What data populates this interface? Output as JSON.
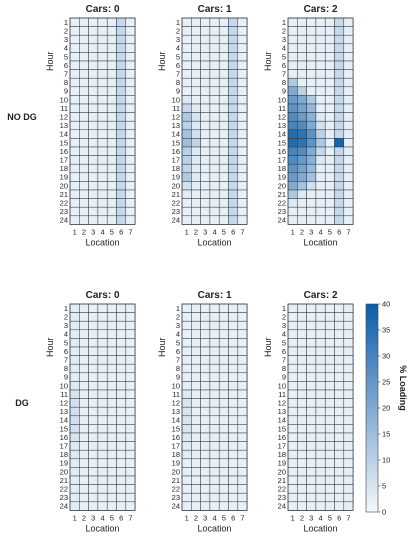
{
  "row_labels": [
    "NO DG",
    "DG"
  ],
  "colorbar": {
    "label": "% Loading",
    "ticks": [
      0,
      5,
      10,
      15,
      20,
      25,
      30,
      35,
      40
    ],
    "range": [
      0,
      40
    ],
    "color_low": "#f4f8fb",
    "color_high": "#0b5da8"
  },
  "chart_data": [
    {
      "type": "heatmap",
      "title": "Cars: 0",
      "xlabel": "Location",
      "ylabel": "Hour",
      "x": [
        1,
        2,
        3,
        4,
        5,
        6,
        7
      ],
      "y": [
        1,
        2,
        3,
        4,
        5,
        6,
        7,
        8,
        9,
        10,
        11,
        12,
        13,
        14,
        15,
        16,
        17,
        18,
        19,
        20,
        21,
        22,
        23,
        24
      ],
      "values": [
        [
          2,
          2,
          2,
          2,
          2,
          8,
          2
        ],
        [
          2,
          2,
          2,
          2,
          2,
          8,
          2
        ],
        [
          2,
          2,
          2,
          2,
          2,
          8,
          2
        ],
        [
          2,
          2,
          2,
          2,
          2,
          8,
          2
        ],
        [
          2,
          2,
          2,
          2,
          2,
          8,
          2
        ],
        [
          2,
          2,
          2,
          2,
          2,
          8,
          2
        ],
        [
          2,
          2,
          2,
          2,
          2,
          8,
          2
        ],
        [
          2,
          2,
          2,
          2,
          2,
          8,
          2
        ],
        [
          2,
          2,
          2,
          2,
          2,
          8,
          2
        ],
        [
          2,
          2,
          2,
          2,
          2,
          8,
          2
        ],
        [
          2,
          2,
          2,
          2,
          2,
          8,
          2
        ],
        [
          2,
          2,
          2,
          2,
          2,
          8,
          2
        ],
        [
          2,
          2,
          2,
          2,
          2,
          8,
          2
        ],
        [
          2,
          2,
          2,
          2,
          2,
          8,
          2
        ],
        [
          2,
          2,
          2,
          2,
          2,
          8,
          2
        ],
        [
          2,
          2,
          2,
          2,
          2,
          8,
          2
        ],
        [
          2,
          2,
          2,
          2,
          2,
          8,
          2
        ],
        [
          2,
          2,
          2,
          2,
          2,
          8,
          2
        ],
        [
          2,
          2,
          2,
          2,
          2,
          8,
          2
        ],
        [
          2,
          2,
          2,
          2,
          2,
          8,
          2
        ],
        [
          2,
          2,
          2,
          2,
          2,
          8,
          2
        ],
        [
          2,
          2,
          2,
          2,
          2,
          8,
          2
        ],
        [
          2,
          2,
          2,
          2,
          2,
          8,
          2
        ],
        [
          2,
          2,
          2,
          2,
          2,
          8,
          2
        ]
      ]
    },
    {
      "type": "heatmap",
      "title": "Cars: 1",
      "xlabel": "Location",
      "ylabel": "Hour",
      "x": [
        1,
        2,
        3,
        4,
        5,
        6,
        7
      ],
      "y": [
        1,
        2,
        3,
        4,
        5,
        6,
        7,
        8,
        9,
        10,
        11,
        12,
        13,
        14,
        15,
        16,
        17,
        18,
        19,
        20,
        21,
        22,
        23,
        24
      ],
      "values": [
        [
          2,
          2,
          2,
          2,
          2,
          8,
          2
        ],
        [
          2,
          2,
          2,
          2,
          2,
          8,
          2
        ],
        [
          2,
          2,
          2,
          2,
          2,
          8,
          2
        ],
        [
          2,
          2,
          2,
          2,
          2,
          8,
          2
        ],
        [
          2,
          2,
          2,
          2,
          2,
          8,
          2
        ],
        [
          2,
          2,
          2,
          2,
          2,
          8,
          2
        ],
        [
          2,
          2,
          2,
          2,
          2,
          8,
          2
        ],
        [
          2,
          2,
          2,
          2,
          2,
          8,
          2
        ],
        [
          2,
          2,
          2,
          2,
          2,
          8,
          2
        ],
        [
          4,
          2,
          2,
          2,
          2,
          8,
          2
        ],
        [
          8,
          3,
          2,
          2,
          2,
          8,
          2
        ],
        [
          12,
          5,
          2,
          2,
          2,
          8,
          2
        ],
        [
          10,
          4,
          2,
          2,
          2,
          8,
          2
        ],
        [
          14,
          6,
          2,
          2,
          2,
          8,
          2
        ],
        [
          15,
          9,
          2,
          2,
          2,
          8,
          2
        ],
        [
          10,
          4,
          2,
          2,
          2,
          8,
          2
        ],
        [
          10,
          4,
          2,
          2,
          2,
          8,
          2
        ],
        [
          9,
          3,
          2,
          2,
          2,
          8,
          2
        ],
        [
          12,
          4,
          2,
          2,
          2,
          8,
          2
        ],
        [
          6,
          3,
          2,
          2,
          2,
          8,
          2
        ],
        [
          3,
          2,
          2,
          2,
          2,
          8,
          2
        ],
        [
          2,
          2,
          2,
          2,
          2,
          8,
          2
        ],
        [
          2,
          2,
          2,
          2,
          2,
          8,
          2
        ],
        [
          2,
          2,
          2,
          2,
          2,
          8,
          2
        ]
      ]
    },
    {
      "type": "heatmap",
      "title": "Cars: 2",
      "xlabel": "Location",
      "ylabel": "Hour",
      "x": [
        1,
        2,
        3,
        4,
        5,
        6,
        7
      ],
      "y": [
        1,
        2,
        3,
        4,
        5,
        6,
        7,
        8,
        9,
        10,
        11,
        12,
        13,
        14,
        15,
        16,
        17,
        18,
        19,
        20,
        21,
        22,
        23,
        24
      ],
      "values": [
        [
          2,
          2,
          2,
          2,
          2,
          8,
          2
        ],
        [
          2,
          2,
          2,
          2,
          2,
          8,
          2
        ],
        [
          2,
          2,
          2,
          2,
          2,
          8,
          2
        ],
        [
          2,
          2,
          2,
          2,
          2,
          8,
          2
        ],
        [
          2,
          2,
          2,
          2,
          2,
          8,
          2
        ],
        [
          2,
          2,
          2,
          2,
          2,
          8,
          2
        ],
        [
          2,
          2,
          2,
          2,
          2,
          8,
          2
        ],
        [
          12,
          2,
          2,
          2,
          2,
          8,
          2
        ],
        [
          20,
          10,
          2,
          2,
          2,
          8,
          2
        ],
        [
          24,
          20,
          12,
          2,
          2,
          8,
          2
        ],
        [
          26,
          22,
          16,
          2,
          2,
          8,
          2
        ],
        [
          28,
          24,
          18,
          4,
          2,
          8,
          2
        ],
        [
          30,
          28,
          20,
          6,
          2,
          8,
          2
        ],
        [
          36,
          34,
          26,
          10,
          2,
          8,
          2
        ],
        [
          36,
          34,
          26,
          12,
          2,
          38,
          2
        ],
        [
          30,
          28,
          20,
          8,
          2,
          8,
          2
        ],
        [
          28,
          24,
          18,
          4,
          2,
          8,
          2
        ],
        [
          26,
          22,
          16,
          2,
          2,
          8,
          2
        ],
        [
          24,
          20,
          14,
          2,
          2,
          8,
          2
        ],
        [
          20,
          14,
          6,
          2,
          2,
          8,
          2
        ],
        [
          12,
          4,
          2,
          2,
          2,
          8,
          2
        ],
        [
          4,
          2,
          2,
          2,
          2,
          8,
          2
        ],
        [
          2,
          2,
          2,
          2,
          2,
          8,
          2
        ],
        [
          2,
          2,
          2,
          2,
          2,
          8,
          2
        ]
      ]
    },
    {
      "type": "heatmap",
      "title": "Cars: 0",
      "xlabel": "Location",
      "ylabel": "Hour",
      "x": [
        1,
        2,
        3,
        4,
        5,
        6,
        7
      ],
      "y": [
        1,
        2,
        3,
        4,
        5,
        6,
        7,
        8,
        9,
        10,
        11,
        12,
        13,
        14,
        15,
        16,
        17,
        18,
        19,
        20,
        21,
        22,
        23,
        24
      ],
      "values": [
        [
          3,
          2,
          2,
          2,
          2,
          2,
          2
        ],
        [
          3,
          2,
          2,
          2,
          2,
          2,
          2
        ],
        [
          3,
          2,
          2,
          2,
          2,
          2,
          2
        ],
        [
          3,
          2,
          2,
          2,
          2,
          2,
          2
        ],
        [
          3,
          2,
          2,
          2,
          2,
          2,
          2
        ],
        [
          3,
          2,
          2,
          2,
          2,
          2,
          2
        ],
        [
          3,
          2,
          2,
          2,
          2,
          2,
          2
        ],
        [
          3,
          2,
          2,
          2,
          2,
          2,
          2
        ],
        [
          3,
          2,
          2,
          2,
          2,
          2,
          2
        ],
        [
          4,
          2,
          2,
          2,
          2,
          2,
          2
        ],
        [
          5,
          2,
          2,
          2,
          2,
          2,
          2
        ],
        [
          6,
          2,
          2,
          2,
          2,
          2,
          2
        ],
        [
          6,
          2,
          2,
          2,
          2,
          2,
          2
        ],
        [
          6,
          2,
          2,
          2,
          2,
          2,
          2
        ],
        [
          6,
          2,
          2,
          2,
          2,
          2,
          2
        ],
        [
          5,
          2,
          2,
          2,
          2,
          2,
          2
        ],
        [
          4,
          2,
          2,
          2,
          2,
          2,
          2
        ],
        [
          4,
          2,
          2,
          2,
          2,
          2,
          2
        ],
        [
          3,
          2,
          2,
          2,
          2,
          2,
          2
        ],
        [
          3,
          2,
          2,
          2,
          2,
          2,
          2
        ],
        [
          3,
          2,
          2,
          2,
          2,
          2,
          2
        ],
        [
          3,
          2,
          2,
          2,
          2,
          2,
          2
        ],
        [
          3,
          2,
          2,
          2,
          2,
          2,
          2
        ],
        [
          3,
          2,
          2,
          2,
          2,
          2,
          2
        ]
      ]
    },
    {
      "type": "heatmap",
      "title": "Cars: 1",
      "xlabel": "Location",
      "ylabel": "Hour",
      "x": [
        1,
        2,
        3,
        4,
        5,
        6,
        7
      ],
      "y": [
        1,
        2,
        3,
        4,
        5,
        6,
        7,
        8,
        9,
        10,
        11,
        12,
        13,
        14,
        15,
        16,
        17,
        18,
        19,
        20,
        21,
        22,
        23,
        24
      ],
      "values": [
        [
          2,
          2,
          2,
          2,
          2,
          2,
          2
        ],
        [
          2,
          2,
          2,
          2,
          2,
          2,
          2
        ],
        [
          2,
          2,
          2,
          2,
          2,
          2,
          2
        ],
        [
          2,
          2,
          2,
          2,
          2,
          2,
          2
        ],
        [
          2,
          2,
          2,
          2,
          2,
          2,
          2
        ],
        [
          2,
          2,
          2,
          2,
          2,
          2,
          2
        ],
        [
          2,
          2,
          2,
          2,
          2,
          2,
          2
        ],
        [
          2,
          2,
          2,
          2,
          2,
          2,
          2
        ],
        [
          2,
          2,
          2,
          2,
          2,
          2,
          2
        ],
        [
          3,
          2,
          2,
          2,
          2,
          2,
          2
        ],
        [
          4,
          2,
          2,
          2,
          2,
          2,
          2
        ],
        [
          5,
          2,
          2,
          2,
          2,
          2,
          2
        ],
        [
          5,
          2,
          2,
          2,
          2,
          2,
          2
        ],
        [
          5,
          2,
          2,
          2,
          2,
          2,
          2
        ],
        [
          5,
          2,
          2,
          2,
          2,
          2,
          2
        ],
        [
          4,
          2,
          2,
          2,
          2,
          2,
          2
        ],
        [
          3,
          2,
          2,
          2,
          2,
          2,
          2
        ],
        [
          3,
          2,
          2,
          2,
          2,
          2,
          2
        ],
        [
          2,
          2,
          2,
          2,
          2,
          2,
          2
        ],
        [
          2,
          2,
          2,
          2,
          2,
          2,
          2
        ],
        [
          2,
          2,
          2,
          2,
          2,
          2,
          2
        ],
        [
          2,
          2,
          2,
          2,
          2,
          2,
          2
        ],
        [
          2,
          2,
          2,
          2,
          2,
          2,
          2
        ],
        [
          2,
          2,
          2,
          2,
          2,
          2,
          2
        ]
      ]
    },
    {
      "type": "heatmap",
      "title": "Cars: 2",
      "xlabel": "Location",
      "ylabel": "Hour",
      "x": [
        1,
        2,
        3,
        4,
        5,
        6,
        7
      ],
      "y": [
        1,
        2,
        3,
        4,
        5,
        6,
        7,
        8,
        9,
        10,
        11,
        12,
        13,
        14,
        15,
        16,
        17,
        18,
        19,
        20,
        21,
        22,
        23,
        24
      ],
      "values": [
        [
          2,
          2,
          2,
          2,
          2,
          2,
          2
        ],
        [
          2,
          2,
          2,
          2,
          2,
          2,
          2
        ],
        [
          2,
          2,
          2,
          2,
          2,
          2,
          2
        ],
        [
          2,
          2,
          2,
          2,
          2,
          2,
          2
        ],
        [
          2,
          2,
          2,
          2,
          2,
          2,
          2
        ],
        [
          2,
          2,
          2,
          2,
          2,
          2,
          2
        ],
        [
          2,
          2,
          2,
          2,
          2,
          2,
          2
        ],
        [
          2,
          2,
          2,
          2,
          2,
          2,
          2
        ],
        [
          2,
          2,
          2,
          2,
          2,
          2,
          2
        ],
        [
          2,
          2,
          2,
          2,
          2,
          2,
          2
        ],
        [
          2,
          2,
          2,
          2,
          2,
          2,
          2
        ],
        [
          2,
          2,
          2,
          2,
          2,
          2,
          2
        ],
        [
          2,
          2,
          2,
          2,
          2,
          2,
          2
        ],
        [
          2,
          2,
          2,
          2,
          2,
          2,
          2
        ],
        [
          2,
          2,
          2,
          2,
          2,
          2,
          2
        ],
        [
          2,
          2,
          2,
          2,
          2,
          2,
          2
        ],
        [
          2,
          2,
          2,
          2,
          2,
          2,
          2
        ],
        [
          2,
          2,
          2,
          2,
          2,
          2,
          2
        ],
        [
          2,
          2,
          2,
          2,
          2,
          2,
          2
        ],
        [
          2,
          2,
          2,
          2,
          2,
          2,
          2
        ],
        [
          2,
          2,
          2,
          2,
          2,
          2,
          2
        ],
        [
          2,
          2,
          2,
          2,
          2,
          2,
          2
        ],
        [
          2,
          2,
          2,
          2,
          2,
          2,
          2
        ],
        [
          2,
          2,
          2,
          2,
          2,
          2,
          2
        ]
      ]
    }
  ]
}
